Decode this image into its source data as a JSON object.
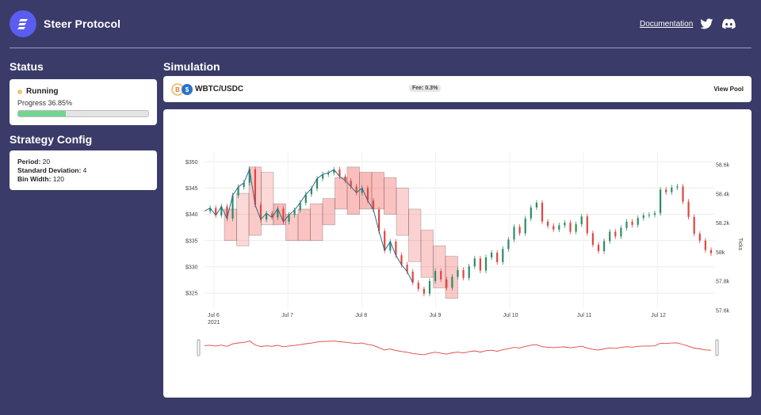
{
  "header": {
    "brand": "Steer Protocol",
    "nav_link": "Documentation",
    "icons": [
      "logo-icon",
      "twitter-icon",
      "discord-icon"
    ]
  },
  "status": {
    "title": "Status",
    "state": "Running",
    "progress_text": "Progress 36.85%",
    "progress": 0.3685
  },
  "strategy": {
    "title": "Strategy Config",
    "rows": [
      {
        "label": "Period:",
        "value": "20"
      },
      {
        "label": "Standard Deviation:",
        "value": "4"
      },
      {
        "label": "Bin Width:",
        "value": "120"
      }
    ]
  },
  "simulation": {
    "title": "Simulation",
    "pool_name": "WBTC/USDC",
    "fee": "Fee: 0.3%",
    "view_pool": "View Pool"
  },
  "colors": {
    "background": "#3a3b69",
    "accent": "#5b5cf0",
    "progress": "#72d690",
    "candle_up": "#2e8b66",
    "candle_down": "#e0463f",
    "range_fill": "#f25a55"
  },
  "chart_data": {
    "type": "line",
    "x_ticks": [
      "Jul 6",
      "Jul 7",
      "Jul 8",
      "Jul 9",
      "Jul 10",
      "Jul 11",
      "Jul 12"
    ],
    "x_tick_year": "2021",
    "y_left_ticks": [
      "$350",
      "$345",
      "$340",
      "$335",
      "$330",
      "$325"
    ],
    "y_right_ticks": [
      "58.6k",
      "58.4k",
      "58.2k",
      "58k",
      "57.8k",
      "57.6k"
    ],
    "y_right_label": "Ticks",
    "ylim_left": [
      322,
      352
    ],
    "grid": true,
    "series": [
      {
        "values": [
          340.6,
          341.2,
          339.8,
          341.5,
          339.2,
          343.6,
          345.2,
          346.0,
          348.6,
          341.8,
          339.0,
          340.2,
          339.4,
          341.1,
          338.6,
          339.9,
          340.8,
          342.2,
          343.8,
          344.9,
          346.8,
          347.6,
          347.9,
          348.5,
          347.2,
          346.4,
          345.3,
          344.1,
          345.0,
          342.6,
          340.9,
          336.8,
          333.1,
          334.8,
          332.2,
          330.4,
          329.1,
          327.0,
          325.8,
          324.9,
          327.3,
          329.2,
          327.6,
          326.0,
          328.1,
          329.4,
          327.9,
          330.1,
          331.6,
          329.3,
          331.8,
          332.7,
          330.9,
          333.4,
          335.2,
          337.6,
          336.4,
          339.2,
          341.3,
          342.2,
          338.6,
          337.8,
          337.1,
          337.9,
          338.4,
          336.7,
          338.1,
          339.6,
          336.4,
          334.2,
          333.0,
          334.9,
          336.7,
          335.8,
          337.4,
          338.6,
          338.0,
          339.3,
          339.8,
          339.9,
          340.2,
          344.7,
          344.2,
          345.1,
          345.3,
          342.4,
          339.5,
          336.3,
          335.0,
          333.2,
          332.6
        ]
      }
    ],
    "ranges": [
      {
        "low": 335,
        "high": 341,
        "opacity": 0.55
      },
      {
        "low": 334,
        "high": 344,
        "opacity": 0.4
      },
      {
        "low": 336,
        "high": 349,
        "opacity": 0.55
      },
      {
        "low": 338,
        "high": 348,
        "opacity": 0.4
      },
      {
        "low": 338,
        "high": 342,
        "opacity": 0.7
      },
      {
        "low": 335,
        "high": 340,
        "opacity": 0.55
      },
      {
        "low": 335,
        "high": 341,
        "opacity": 0.6
      },
      {
        "low": 335,
        "high": 342,
        "opacity": 0.55
      },
      {
        "low": 338,
        "high": 343,
        "opacity": 0.6
      },
      {
        "low": 341,
        "high": 347,
        "opacity": 0.6
      },
      {
        "low": 340,
        "high": 349,
        "opacity": 0.65
      },
      {
        "low": 341,
        "high": 348,
        "opacity": 0.7
      },
      {
        "low": 341,
        "high": 348,
        "opacity": 0.65
      },
      {
        "low": 340,
        "high": 347,
        "opacity": 0.6
      },
      {
        "low": 336,
        "high": 345,
        "opacity": 0.45
      },
      {
        "low": 331,
        "high": 341,
        "opacity": 0.45
      },
      {
        "low": 328,
        "high": 337,
        "opacity": 0.5
      },
      {
        "low": 326,
        "high": 334,
        "opacity": 0.5
      },
      {
        "low": 324,
        "high": 332,
        "opacity": 0.55
      }
    ]
  }
}
